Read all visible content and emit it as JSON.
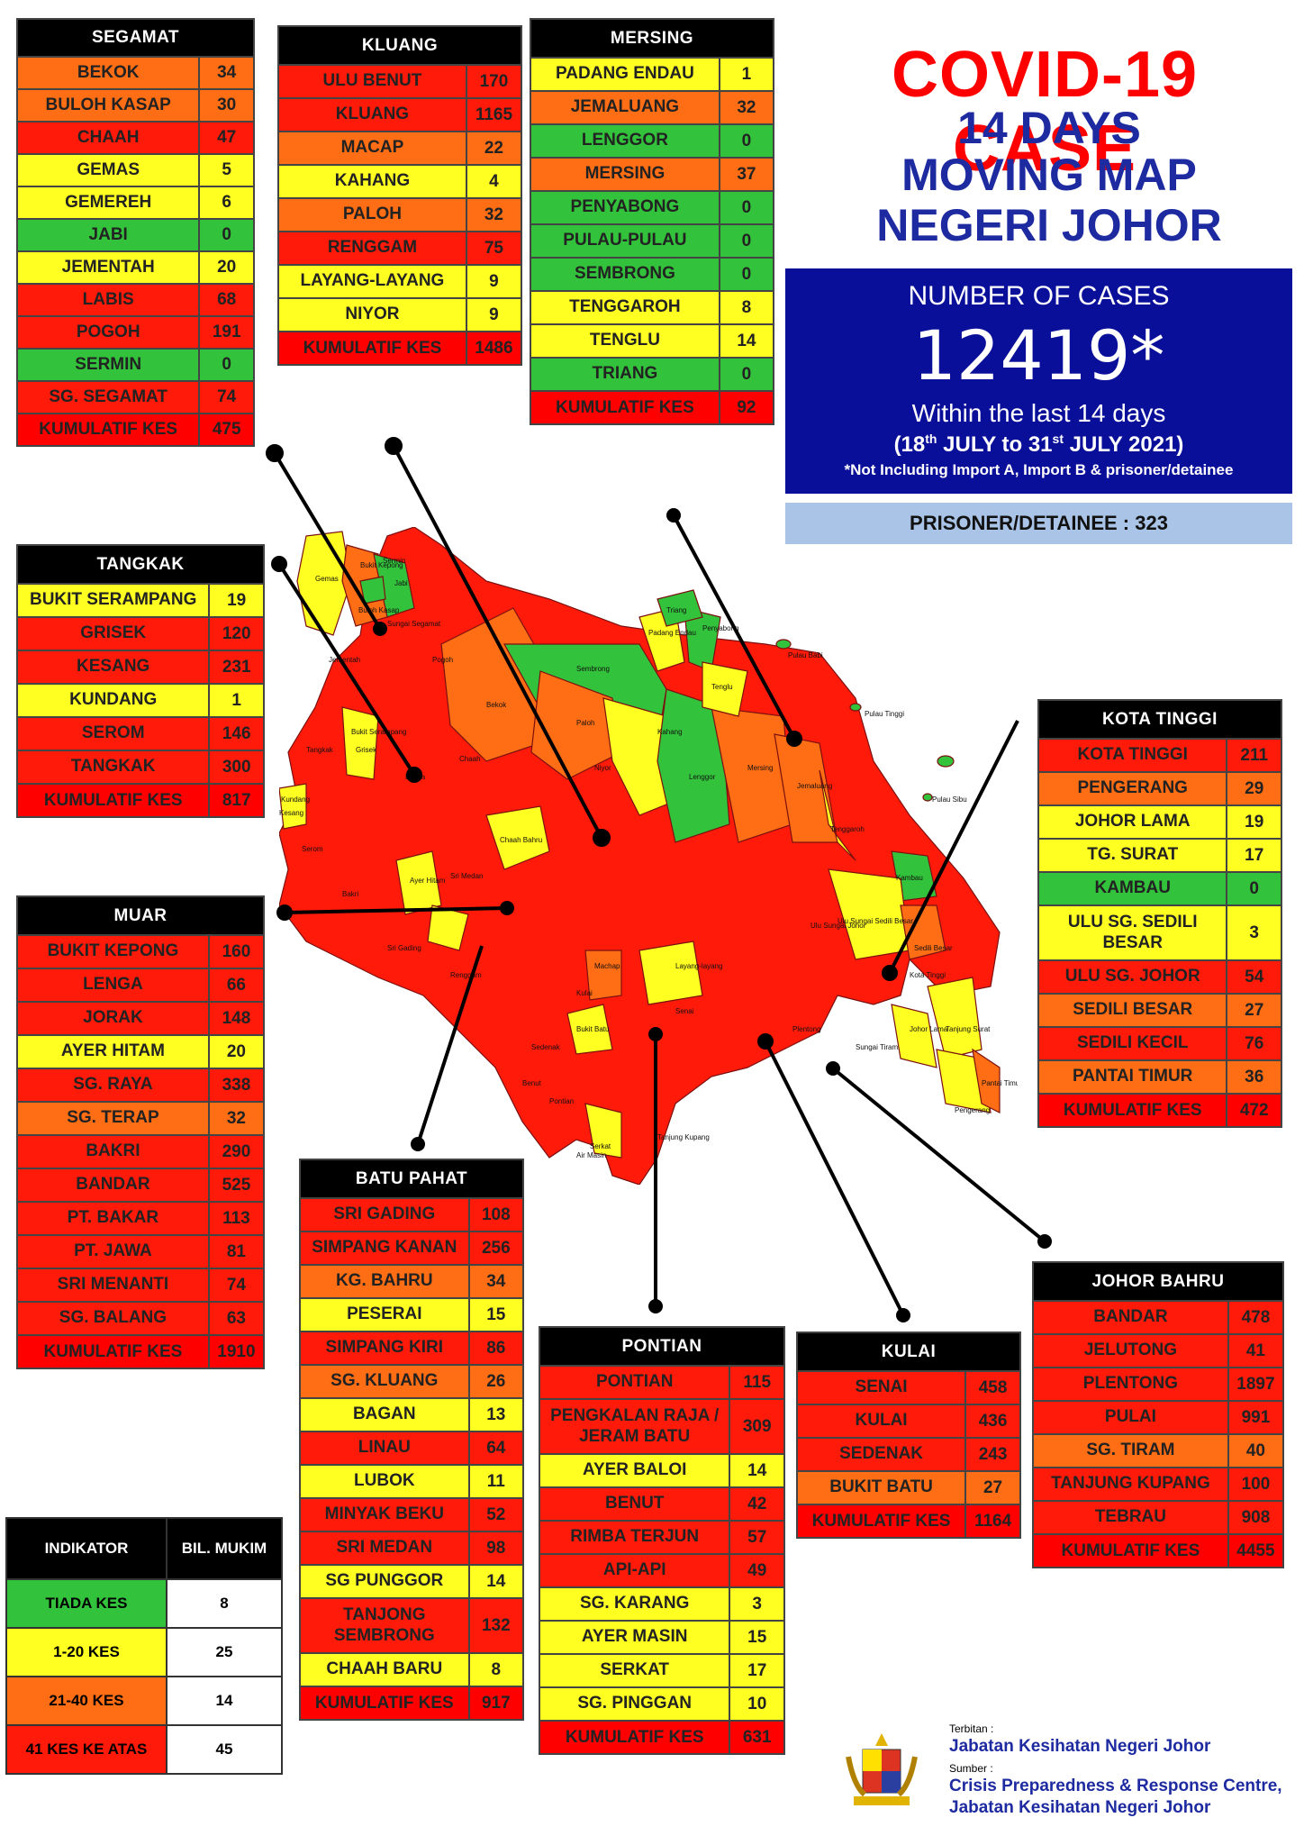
{
  "title": {
    "line1": "COVID-19 CASE",
    "line2": "14 DAYS",
    "line3": "MOVING MAP",
    "line4": "NEGERI JOHOR"
  },
  "summary": {
    "label": "NUMBER OF CASES",
    "value": "12419*",
    "within": "Within the last 14 days",
    "range_a": "(18",
    "range_sup1": "th",
    "range_b": " JULY to 31",
    "range_sup2": "st",
    "range_c": " JULY 2021)",
    "note": "*Not Including Import A, Import B & prisoner/detainee",
    "prisoner": "PRISONER/DETAINEE : 323"
  },
  "colors": {
    "red": "#ff1a0a",
    "orange": "#ff6d14",
    "yellow": "#ffff22",
    "green": "#33c23b",
    "navy": "#0a0f9a",
    "title_red": "#ff0000",
    "title_blue": "#1d2aa0"
  },
  "districts": {
    "segamat": {
      "name": "SEGAMAT",
      "rows": [
        {
          "n": "BEKOK",
          "v": "34",
          "c": "org"
        },
        {
          "n": "BULOH KASAP",
          "v": "30",
          "c": "org"
        },
        {
          "n": "CHAAH",
          "v": "47",
          "c": "red"
        },
        {
          "n": "GEMAS",
          "v": "5",
          "c": "yel"
        },
        {
          "n": "GEMEREH",
          "v": "6",
          "c": "yel"
        },
        {
          "n": "JABI",
          "v": "0",
          "c": "grn"
        },
        {
          "n": "JEMENTAH",
          "v": "20",
          "c": "yel"
        },
        {
          "n": "LABIS",
          "v": "68",
          "c": "red"
        },
        {
          "n": "POGOH",
          "v": "191",
          "c": "red"
        },
        {
          "n": "SERMIN",
          "v": "0",
          "c": "grn"
        },
        {
          "n": "SG. SEGAMAT",
          "v": "74",
          "c": "red"
        }
      ],
      "total_label": "KUMULATIF KES",
      "total": "475"
    },
    "kluang": {
      "name": "KLUANG",
      "rows": [
        {
          "n": "ULU BENUT",
          "v": "170",
          "c": "red"
        },
        {
          "n": "KLUANG",
          "v": "1165",
          "c": "red"
        },
        {
          "n": "MACAP",
          "v": "22",
          "c": "org"
        },
        {
          "n": "KAHANG",
          "v": "4",
          "c": "yel"
        },
        {
          "n": "PALOH",
          "v": "32",
          "c": "org"
        },
        {
          "n": "RENGGAM",
          "v": "75",
          "c": "red"
        },
        {
          "n": "LAYANG-LAYANG",
          "v": "9",
          "c": "yel"
        },
        {
          "n": "NIYOR",
          "v": "9",
          "c": "yel"
        }
      ],
      "total_label": "KUMULATIF KES",
      "total": "1486"
    },
    "mersing": {
      "name": "MERSING",
      "rows": [
        {
          "n": "PADANG ENDAU",
          "v": "1",
          "c": "yel"
        },
        {
          "n": "JEMALUANG",
          "v": "32",
          "c": "org"
        },
        {
          "n": "LENGGOR",
          "v": "0",
          "c": "grn"
        },
        {
          "n": "MERSING",
          "v": "37",
          "c": "org"
        },
        {
          "n": "PENYABONG",
          "v": "0",
          "c": "grn"
        },
        {
          "n": "PULAU-PULAU",
          "v": "0",
          "c": "grn"
        },
        {
          "n": "SEMBRONG",
          "v": "0",
          "c": "grn"
        },
        {
          "n": "TENGGAROH",
          "v": "8",
          "c": "yel"
        },
        {
          "n": "TENGLU",
          "v": "14",
          "c": "yel"
        },
        {
          "n": "TRIANG",
          "v": "0",
          "c": "grn"
        }
      ],
      "total_label": "KUMULATIF KES",
      "total": "92"
    },
    "tangkak": {
      "name": "TANGKAK",
      "rows": [
        {
          "n": "BUKIT SERAMPANG",
          "v": "19",
          "c": "yel"
        },
        {
          "n": "GRISEK",
          "v": "120",
          "c": "red"
        },
        {
          "n": "KESANG",
          "v": "231",
          "c": "red"
        },
        {
          "n": "KUNDANG",
          "v": "1",
          "c": "yel"
        },
        {
          "n": "SEROM",
          "v": "146",
          "c": "red"
        },
        {
          "n": "TANGKAK",
          "v": "300",
          "c": "red"
        }
      ],
      "total_label": "KUMULATIF KES",
      "total": "817"
    },
    "muar": {
      "name": "MUAR",
      "rows": [
        {
          "n": "BUKIT KEPONG",
          "v": "160",
          "c": "red"
        },
        {
          "n": "LENGA",
          "v": "66",
          "c": "red"
        },
        {
          "n": "JORAK",
          "v": "148",
          "c": "red"
        },
        {
          "n": "AYER HITAM",
          "v": "20",
          "c": "yel"
        },
        {
          "n": "SG. RAYA",
          "v": "338",
          "c": "red"
        },
        {
          "n": "SG. TERAP",
          "v": "32",
          "c": "org"
        },
        {
          "n": "BAKRI",
          "v": "290",
          "c": "red"
        },
        {
          "n": "BANDAR",
          "v": "525",
          "c": "red"
        },
        {
          "n": "PT. BAKAR",
          "v": "113",
          "c": "red"
        },
        {
          "n": "PT. JAWA",
          "v": "81",
          "c": "red"
        },
        {
          "n": "SRI MENANTI",
          "v": "74",
          "c": "red"
        },
        {
          "n": "SG. BALANG",
          "v": "63",
          "c": "red"
        }
      ],
      "total_label": "KUMULATIF KES",
      "total": "1910"
    },
    "kota_tinggi": {
      "name": "KOTA TINGGI",
      "rows": [
        {
          "n": "KOTA TINGGI",
          "v": "211",
          "c": "red"
        },
        {
          "n": "PENGERANG",
          "v": "29",
          "c": "org"
        },
        {
          "n": "JOHOR LAMA",
          "v": "19",
          "c": "yel"
        },
        {
          "n": "TG. SURAT",
          "v": "17",
          "c": "yel"
        },
        {
          "n": "KAMBAU",
          "v": "0",
          "c": "grn"
        },
        {
          "n": "ULU SG. SEDILI BESAR",
          "v": "3",
          "c": "yel"
        },
        {
          "n": "ULU  SG. JOHOR",
          "v": "54",
          "c": "red"
        },
        {
          "n": "SEDILI BESAR",
          "v": "27",
          "c": "org"
        },
        {
          "n": "SEDILI KECIL",
          "v": "76",
          "c": "red"
        },
        {
          "n": "PANTAI TIMUR",
          "v": "36",
          "c": "org"
        }
      ],
      "total_label": "KUMULATIF KES",
      "total": "472"
    },
    "batu_pahat": {
      "name": "BATU PAHAT",
      "rows": [
        {
          "n": "SRI GADING",
          "v": "108",
          "c": "red"
        },
        {
          "n": "SIMPANG KANAN",
          "v": "256",
          "c": "red"
        },
        {
          "n": "KG. BAHRU",
          "v": "34",
          "c": "org"
        },
        {
          "n": "PESERAI",
          "v": "15",
          "c": "yel"
        },
        {
          "n": "SIMPANG KIRI",
          "v": "86",
          "c": "red"
        },
        {
          "n": "SG. KLUANG",
          "v": "26",
          "c": "org"
        },
        {
          "n": "BAGAN",
          "v": "13",
          "c": "yel"
        },
        {
          "n": "LINAU",
          "v": "64",
          "c": "red"
        },
        {
          "n": "LUBOK",
          "v": "11",
          "c": "yel"
        },
        {
          "n": "MINYAK BEKU",
          "v": "52",
          "c": "red"
        },
        {
          "n": "SRI MEDAN",
          "v": "98",
          "c": "red"
        },
        {
          "n": "SG PUNGGOR",
          "v": "14",
          "c": "yel"
        },
        {
          "n": "TANJONG SEMBRONG",
          "v": "132",
          "c": "red"
        },
        {
          "n": "CHAAH BARU",
          "v": "8",
          "c": "yel"
        }
      ],
      "total_label": "KUMULATIF KES",
      "total": "917"
    },
    "pontian": {
      "name": "PONTIAN",
      "rows": [
        {
          "n": "PONTIAN",
          "v": "115",
          "c": "red"
        },
        {
          "n": "PENGKALAN RAJA / JERAM BATU",
          "v": "309",
          "c": "red"
        },
        {
          "n": "AYER BALOI",
          "v": "14",
          "c": "yel"
        },
        {
          "n": "BENUT",
          "v": "42",
          "c": "red"
        },
        {
          "n": "RIMBA TERJUN",
          "v": "57",
          "c": "red"
        },
        {
          "n": "API-API",
          "v": "49",
          "c": "red"
        },
        {
          "n": "SG. KARANG",
          "v": "3",
          "c": "yel"
        },
        {
          "n": "AYER MASIN",
          "v": "15",
          "c": "yel"
        },
        {
          "n": "SERKAT",
          "v": "17",
          "c": "yel"
        },
        {
          "n": "SG. PINGGAN",
          "v": "10",
          "c": "yel"
        }
      ],
      "total_label": "KUMULATIF KES",
      "total": "631"
    },
    "kulai": {
      "name": "KULAI",
      "rows": [
        {
          "n": "SENAI",
          "v": "458",
          "c": "red"
        },
        {
          "n": "KULAI",
          "v": "436",
          "c": "red"
        },
        {
          "n": "SEDENAK",
          "v": "243",
          "c": "red"
        },
        {
          "n": "BUKIT BATU",
          "v": "27",
          "c": "org"
        }
      ],
      "total_label": "KUMULATIF KES",
      "total": "1164"
    },
    "johor_bahru": {
      "name": "JOHOR BAHRU",
      "rows": [
        {
          "n": "BANDAR",
          "v": "478",
          "c": "red"
        },
        {
          "n": "JELUTONG",
          "v": "41",
          "c": "red"
        },
        {
          "n": "PLENTONG",
          "v": "1897",
          "c": "red"
        },
        {
          "n": "PULAI",
          "v": "991",
          "c": "red"
        },
        {
          "n": "SG. TIRAM",
          "v": "40",
          "c": "org"
        },
        {
          "n": "TANJUNG KUPANG",
          "v": "100",
          "c": "red"
        },
        {
          "n": "TEBRAU",
          "v": "908",
          "c": "red"
        }
      ],
      "total_label": "KUMULATIF KES",
      "total": "4455"
    }
  },
  "legend": {
    "h1": "INDIKATOR",
    "h2": "BIL. MUKIM",
    "rows": [
      {
        "label": "TIADA KES",
        "value": "8",
        "c": "grn"
      },
      {
        "label": "1-20 KES",
        "value": "25",
        "c": "yel"
      },
      {
        "label": "21-40 KES",
        "value": "14",
        "c": "org"
      },
      {
        "label": "41 KES KE ATAS",
        "value": "45",
        "c": "red"
      }
    ]
  },
  "footer": {
    "terbitan_label": "Terbitan :",
    "terbitan": "Jabatan Kesihatan Negeri Johor",
    "sumber_label": "Sumber :",
    "sumber1": "Crisis Preparedness & Response Centre,",
    "sumber2": "Jabatan Kesihatan Negeri Johor"
  },
  "map_labels": [
    "Gemas",
    "Bukit Kepong",
    "Sermin",
    "Jabi",
    "Buloh Kasap",
    "Bekok",
    "Paloh",
    "Niyor",
    "Kahang",
    "Sembrong",
    "Lenggor",
    "Mersing",
    "Jemaluang",
    "Padang Endau",
    "Penyabong",
    "Triang",
    "Tenglu",
    "Pulau Babi",
    "Pulau Tinggi",
    "Pulau Sibu",
    "Kambau",
    "Tenggaroh",
    "Kesang",
    "Tangkak",
    "Grisek",
    "Lenga",
    "Chaah Bahru",
    "Ayer Hitam",
    "Sri Medan",
    "Layang-layang",
    "Machap",
    "Senai",
    "Kota Tinggi",
    "Johor Lama",
    "Tanjung Surat",
    "Pengerang",
    "Pantai Timur",
    "Pontian",
    "Serkat",
    "Tanjung Kupang",
    "Sungai Segamat",
    "Pogoh",
    "Bukit Serampang",
    "Jementah",
    "Chaah",
    "Kundang",
    "Serom",
    "Bakri",
    "Sri Gading",
    "Bukit Batu",
    "Sedili Besar",
    "Ulu Sungai Sedili Besar",
    "Ulu Sungai Johor",
    "Sungai Tiram",
    "Plentong",
    "Sedenak",
    "Kulai",
    "Renggam",
    "Benut",
    "Air Masin"
  ]
}
